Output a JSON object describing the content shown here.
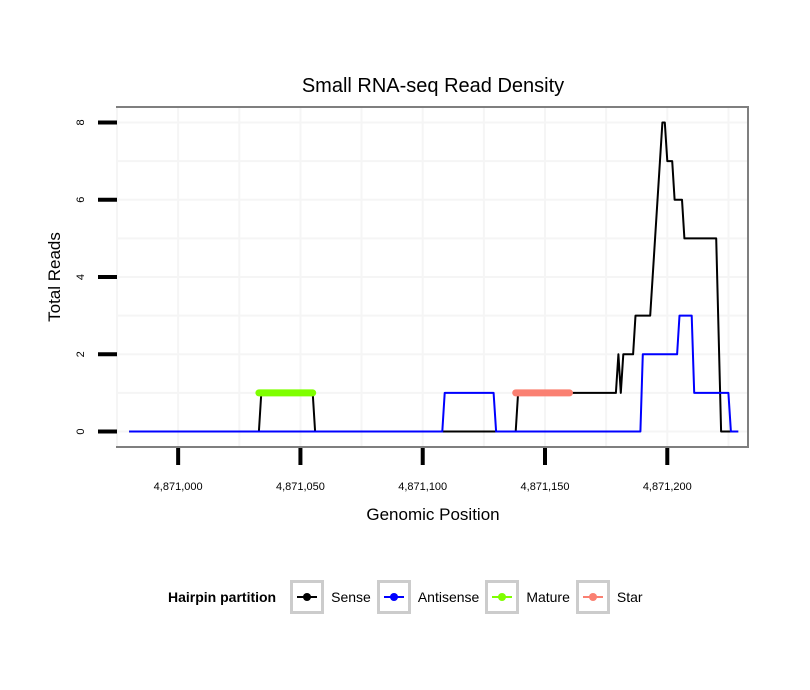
{
  "chart_data": {
    "type": "line",
    "title": "Small RNA-seq Read Density",
    "xlabel": "Genomic Position",
    "ylabel": "Total Reads",
    "xlim": [
      4870975,
      4871233
    ],
    "ylim": [
      -0.4,
      8.4
    ],
    "xticks": [
      4871000,
      4871050,
      4871100,
      4871150,
      4871200
    ],
    "xtick_labels": [
      "4,871,000",
      "4,871,050",
      "4,871,100",
      "4,871,150",
      "4,871,200"
    ],
    "yticks": [
      0,
      2,
      4,
      6,
      8
    ],
    "ytick_labels": [
      "0",
      "2",
      "4",
      "6",
      "8"
    ],
    "grid": true,
    "legend": {
      "title": "Hairpin partition",
      "placement": "bottom",
      "entries": [
        "Sense",
        "Antisense",
        "Mature",
        "Star"
      ]
    },
    "series": [
      {
        "name": "Sense",
        "color": "#000000",
        "points": [
          [
            4870980,
            0
          ],
          [
            4871033,
            0
          ],
          [
            4871034,
            1
          ],
          [
            4871055,
            1
          ],
          [
            4871056,
            0
          ],
          [
            4871138,
            0
          ],
          [
            4871139,
            1
          ],
          [
            4871179,
            1
          ],
          [
            4871180,
            2
          ],
          [
            4871181,
            1
          ],
          [
            4871182,
            2
          ],
          [
            4871186,
            2
          ],
          [
            4871187,
            3
          ],
          [
            4871193,
            3
          ],
          [
            4871198,
            8
          ],
          [
            4871199,
            8
          ],
          [
            4871200,
            7
          ],
          [
            4871202,
            7
          ],
          [
            4871203,
            6
          ],
          [
            4871206,
            6
          ],
          [
            4871207,
            5
          ],
          [
            4871220,
            5
          ],
          [
            4871222,
            0
          ],
          [
            4871229,
            0
          ]
        ]
      },
      {
        "name": "Antisense",
        "color": "#0000ff",
        "points": [
          [
            4870980,
            0
          ],
          [
            4871108,
            0
          ],
          [
            4871109,
            1
          ],
          [
            4871129,
            1
          ],
          [
            4871130,
            0
          ],
          [
            4871189,
            0
          ],
          [
            4871190,
            2
          ],
          [
            4871204,
            2
          ],
          [
            4871205,
            3
          ],
          [
            4871210,
            3
          ],
          [
            4871211,
            1
          ],
          [
            4871225,
            1
          ],
          [
            4871226,
            0
          ],
          [
            4871229,
            0
          ]
        ]
      },
      {
        "name": "Mature",
        "color": "#7fff00",
        "points": [
          [
            4871033,
            1
          ],
          [
            4871055,
            1
          ]
        ]
      },
      {
        "name": "Star",
        "color": "#fa8072",
        "points": [
          [
            4871138,
            1
          ],
          [
            4871160,
            1
          ]
        ]
      }
    ]
  }
}
